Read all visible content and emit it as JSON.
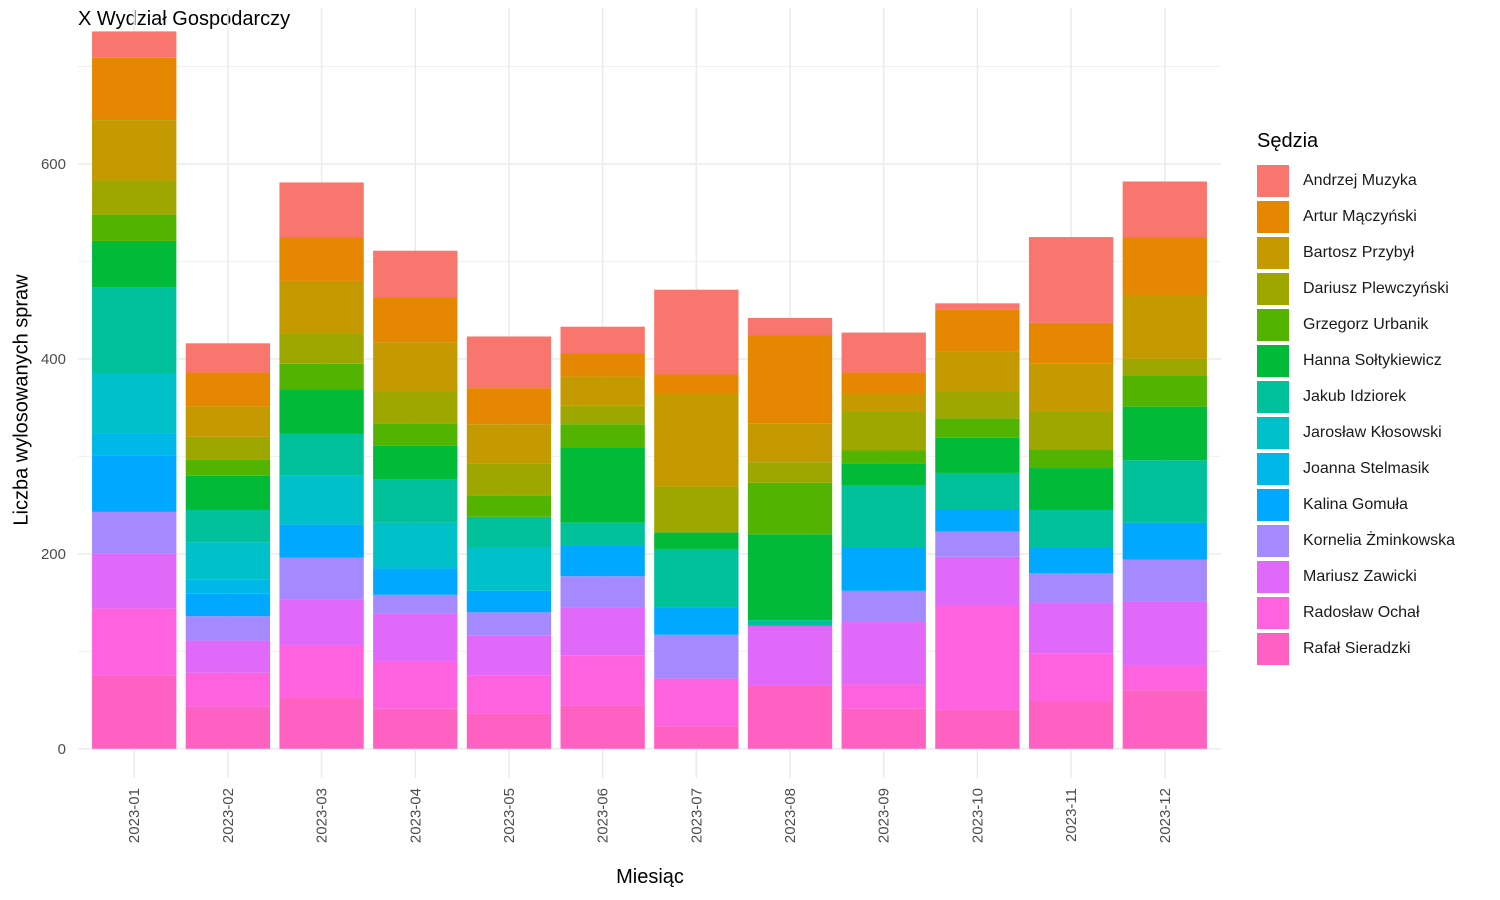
{
  "chart_data": {
    "type": "bar",
    "stacked": true,
    "title": "X Wydział Gospodarczy",
    "xlabel": "Miesiąc",
    "ylabel": "Liczba wylosowanych spraw",
    "ylim": [
      -30,
      760
    ],
    "yticks": [
      0,
      200,
      400,
      600
    ],
    "grid": true,
    "legend_title": "Sędzia",
    "legend_position": "right",
    "categories": [
      "2023-01",
      "2023-02",
      "2023-03",
      "2023-04",
      "2023-05",
      "2023-06",
      "2023-07",
      "2023-08",
      "2023-09",
      "2023-10",
      "2023-11",
      "2023-12"
    ],
    "series": [
      {
        "name": "Rafał Sieradzki",
        "color": "#FF61C3",
        "values": [
          75,
          43,
          53,
          41,
          36,
          44,
          23,
          65,
          41,
          40,
          49,
          60
        ]
      },
      {
        "name": "Radosław Ochał",
        "color": "#FF62DF",
        "values": [
          69,
          35,
          53,
          49,
          39,
          52,
          49,
          0,
          25,
          107,
          49,
          25
        ]
      },
      {
        "name": "Mariusz Zawicki",
        "color": "#E069F9",
        "values": [
          56,
          33,
          47,
          49,
          41,
          49,
          0,
          61,
          64,
          50,
          52,
          66
        ]
      },
      {
        "name": "Kornelia Żminkowska",
        "color": "#A58AFF",
        "values": [
          43,
          25,
          43,
          19,
          24,
          32,
          45,
          0,
          32,
          26,
          30,
          43
        ]
      },
      {
        "name": "Kalina Gomuła",
        "color": "#00A9FF",
        "values": [
          58,
          23,
          34,
          27,
          22,
          32,
          28,
          0,
          44,
          23,
          26,
          38
        ]
      },
      {
        "name": "Joanna Stelmasik",
        "color": "#00B8E7",
        "values": [
          22,
          15,
          0,
          0,
          0,
          0,
          0,
          0,
          0,
          0,
          0,
          0
        ]
      },
      {
        "name": "Jarosław Kłosowski",
        "color": "#00C1C9",
        "values": [
          62,
          38,
          50,
          47,
          45,
          0,
          0,
          0,
          0,
          0,
          0,
          0
        ]
      },
      {
        "name": "Jakub Idziorek",
        "color": "#00C19A",
        "values": [
          88,
          33,
          43,
          44,
          31,
          23,
          60,
          6,
          64,
          37,
          39,
          64
        ]
      },
      {
        "name": "Hanna Sołtykiewicz",
        "color": "#00BA38",
        "values": [
          48,
          35,
          46,
          35,
          0,
          77,
          17,
          88,
          23,
          36,
          43,
          55
        ]
      },
      {
        "name": "Grzegorz Urbanik",
        "color": "#53B400",
        "values": [
          27,
          17,
          26,
          23,
          22,
          24,
          0,
          53,
          13,
          20,
          19,
          32
        ]
      },
      {
        "name": "Dariusz Plewczyński",
        "color": "#9DA700",
        "values": [
          35,
          23,
          31,
          33,
          33,
          19,
          47,
          21,
          40,
          27,
          39,
          17
        ]
      },
      {
        "name": "Bartosz Przybył",
        "color": "#C49A00",
        "values": [
          62,
          31,
          54,
          50,
          40,
          30,
          95,
          40,
          19,
          42,
          49,
          65
        ]
      },
      {
        "name": "Artur Mączyński",
        "color": "#E58700",
        "values": [
          64,
          35,
          45,
          46,
          37,
          24,
          20,
          90,
          21,
          43,
          42,
          60
        ]
      },
      {
        "name": "Andrzej Muzyka",
        "color": "#F8766D",
        "values": [
          27,
          30,
          56,
          48,
          53,
          27,
          87,
          18,
          41,
          6,
          88,
          57
        ]
      }
    ]
  }
}
